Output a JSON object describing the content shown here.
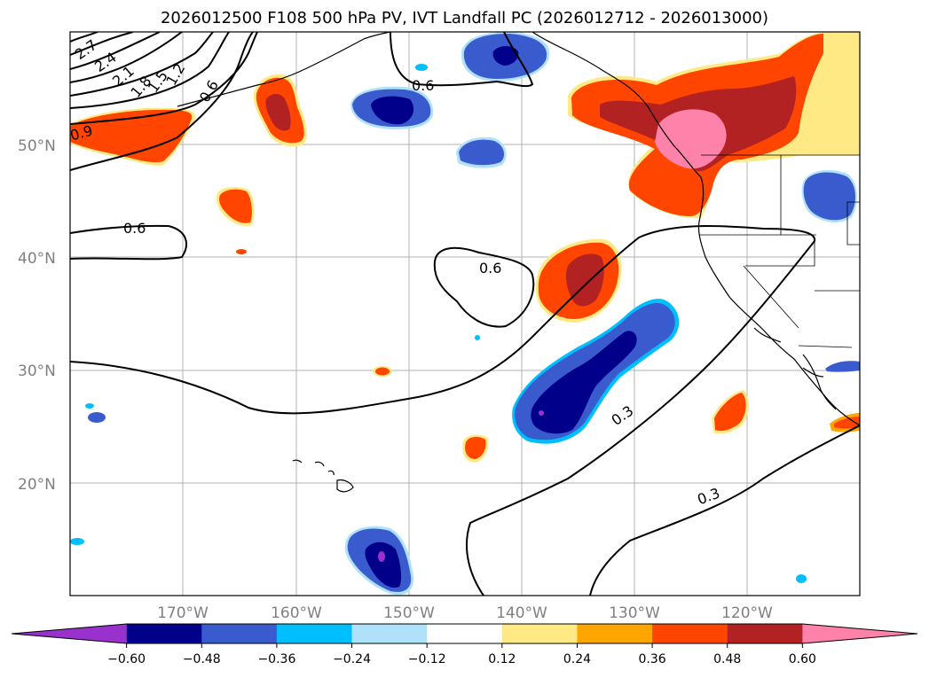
{
  "title": "2026012500 F108 500 hPa PV, IVT Landfall PC (2026012712 - 2026013000)",
  "map": {
    "lat_labels": [
      "50°N",
      "40°N",
      "30°N",
      "20°N"
    ],
    "lon_labels": [
      "170°W",
      "160°W",
      "150°W",
      "140°W",
      "130°W",
      "120°W"
    ],
    "grid": true
  },
  "pv_contours": {
    "color": "#000000",
    "labels": [
      "2.7",
      "2.4",
      "2.1",
      "1.8",
      "1.5",
      "1.2",
      "0.9",
      "0.6",
      "0.6",
      "0.6",
      "0.6",
      "0.3",
      "0.3"
    ]
  },
  "colorbar": {
    "ticks": [
      "−0.60",
      "−0.48",
      "−0.36",
      "−0.24",
      "−0.12",
      "0.12",
      "0.24",
      "0.36",
      "0.48",
      "0.60"
    ],
    "colors": [
      "#9932cc",
      "#00008b",
      "#3a5bcd",
      "#00bfff",
      "#afe1fa",
      "#ffffff",
      "#ffe985",
      "#ffa500",
      "#ff4500",
      "#b22222",
      "#ff82ab"
    ]
  }
}
